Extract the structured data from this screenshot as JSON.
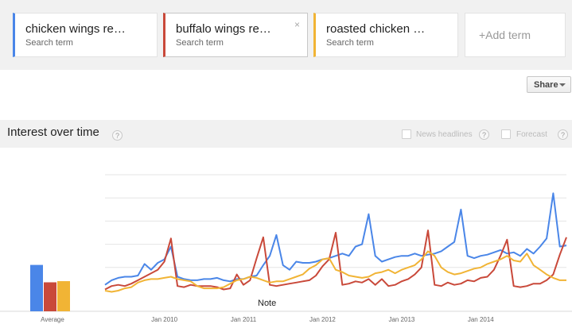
{
  "terms": [
    {
      "title": "chicken wings re…",
      "subtitle": "Search term",
      "color": "#4a86e8"
    },
    {
      "title": "buffalo wings re…",
      "subtitle": "Search term",
      "color": "#c9493a",
      "close": "×"
    },
    {
      "title": "roasted chicken …",
      "subtitle": "Search term",
      "color": "#f1b435"
    }
  ],
  "add_term_label": "+Add term",
  "share_label": "Share",
  "section": {
    "title": "Interest over time",
    "help": "?",
    "news_headlines_label": "News headlines",
    "forecast_label": "Forecast"
  },
  "chart_data": {
    "type": "line",
    "x_axis_labels": [
      "Jan 2010",
      "Jan 2011",
      "Jan 2012",
      "Jan 2013",
      "Jan 2014"
    ],
    "x_start": "2009-04",
    "ylim": [
      0,
      100
    ],
    "note_label": "Note",
    "average_label": "Average",
    "averages": [
      40,
      25,
      26
    ],
    "series": [
      {
        "color": "#4a86e8",
        "values": [
          5,
          9,
          11,
          12,
          12,
          13,
          23,
          18,
          24,
          27,
          38,
          12,
          10,
          9,
          9,
          10,
          10,
          11,
          9,
          8,
          10,
          10,
          12,
          13,
          22,
          30,
          48,
          22,
          18,
          25,
          24,
          24,
          25,
          27,
          28,
          30,
          32,
          30,
          38,
          40,
          66,
          30,
          25,
          27,
          29,
          30,
          30,
          32,
          30,
          31,
          32,
          34,
          38,
          42,
          70,
          30,
          28,
          30,
          31,
          33,
          35,
          32,
          33,
          30,
          36,
          32,
          38,
          45,
          84,
          38,
          39
        ]
      },
      {
        "color": "#c9493a",
        "values": [
          1,
          4,
          5,
          4,
          6,
          9,
          12,
          15,
          18,
          25,
          45,
          4,
          3,
          5,
          4,
          4,
          4,
          3,
          1,
          2,
          14,
          5,
          9,
          28,
          46,
          5,
          4,
          5,
          6,
          7,
          8,
          9,
          13,
          21,
          27,
          50,
          5,
          6,
          8,
          7,
          10,
          5,
          10,
          4,
          5,
          8,
          10,
          14,
          20,
          52,
          5,
          4,
          7,
          5,
          6,
          9,
          8,
          11,
          12,
          18,
          30,
          44,
          4,
          3,
          4,
          6,
          6,
          9,
          14,
          31,
          46
        ]
      },
      {
        "color": "#f1b435",
        "values": [
          0,
          -1,
          0,
          2,
          3,
          7,
          9,
          10,
          10,
          11,
          12,
          10,
          9,
          8,
          4,
          2,
          2,
          2,
          3,
          6,
          9,
          10,
          12,
          11,
          9,
          7,
          8,
          8,
          10,
          12,
          14,
          19,
          22,
          27,
          28,
          18,
          16,
          13,
          12,
          11,
          12,
          15,
          16,
          18,
          15,
          18,
          20,
          22,
          27,
          34,
          30,
          20,
          16,
          14,
          15,
          17,
          19,
          20,
          23,
          25,
          27,
          30,
          26,
          25,
          32,
          22,
          18,
          14,
          11,
          9,
          9
        ]
      }
    ]
  }
}
